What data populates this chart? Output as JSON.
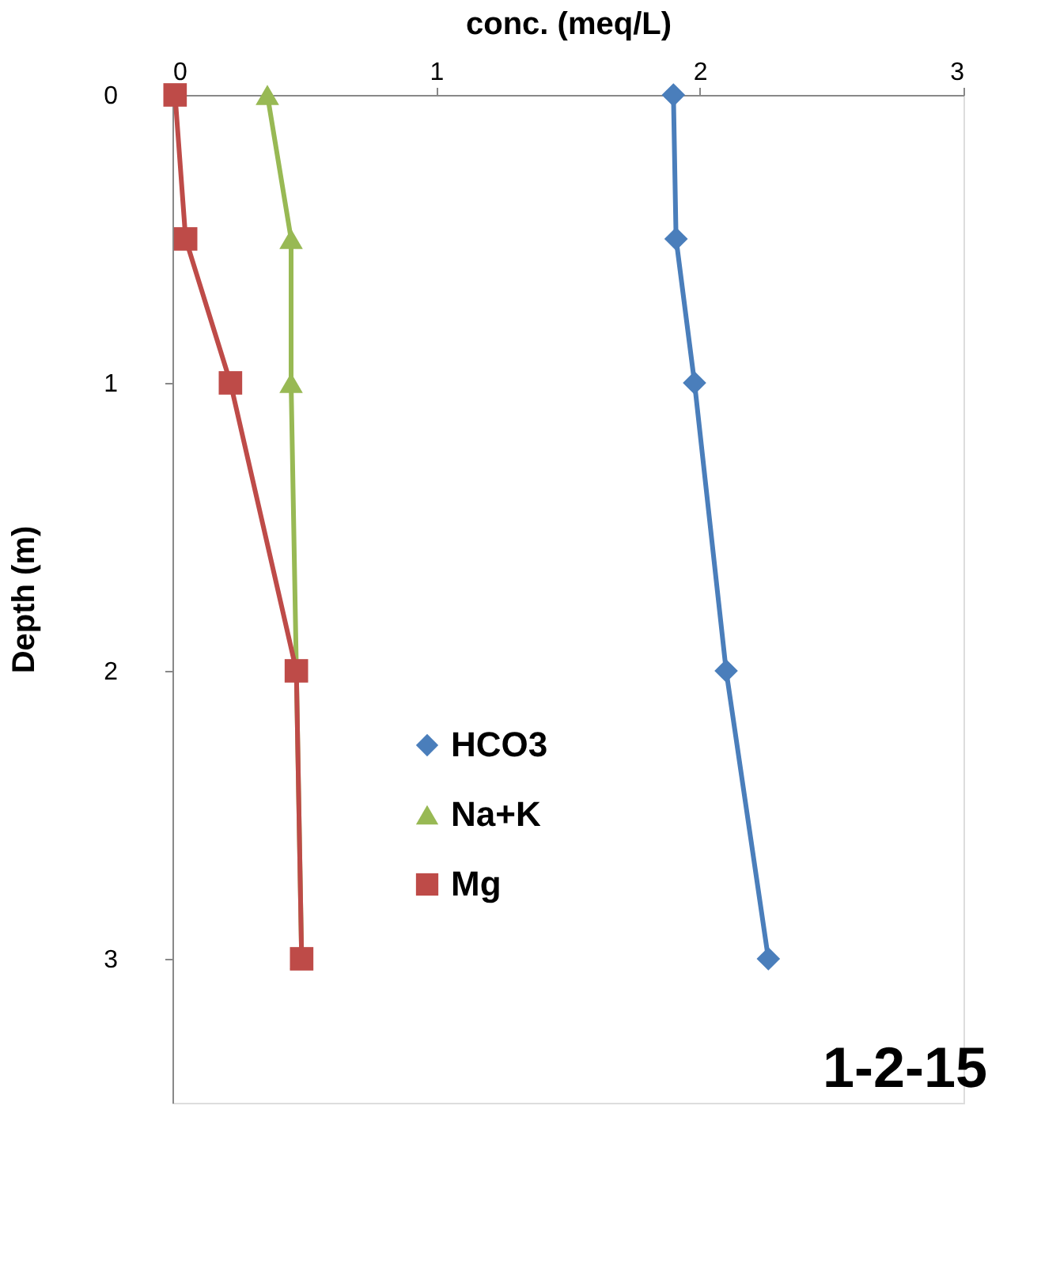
{
  "chart_data": {
    "type": "line",
    "xlabel": "conc. (meq/L)",
    "ylabel": "Depth (m)",
    "xlim": [
      0,
      3
    ],
    "xticks": [
      {
        "value": 0,
        "label": "0"
      },
      {
        "value": 1,
        "label": "1"
      },
      {
        "value": 2,
        "label": "2"
      },
      {
        "value": 3,
        "label": "3"
      }
    ],
    "ylim": [
      3.5,
      0
    ],
    "yticks": [
      {
        "value": 0,
        "label": "0"
      },
      {
        "value": 1,
        "label": "1"
      },
      {
        "value": 2,
        "label": "2"
      },
      {
        "value": 3,
        "label": "3"
      }
    ],
    "grid": false,
    "legend": "bottom",
    "line_style": "solid",
    "annotations": [
      "1-2-15"
    ],
    "series": [
      {
        "name": "HCO3",
        "color": "#4a7ebb",
        "marker": "diamond",
        "x": [
          1.9,
          1.91,
          1.98,
          2.1,
          2.26
        ],
        "values": [
          0,
          0.5,
          1,
          2,
          3
        ]
      },
      {
        "name": "Na+K",
        "color": "#98b954",
        "marker": "triangle",
        "x": [
          0.36,
          0.45,
          0.45,
          0.47,
          0.49
        ],
        "values": [
          0,
          0.5,
          1,
          2,
          3
        ]
      },
      {
        "name": "Mg",
        "color": "#be4b48",
        "marker": "square",
        "x": [
          0.01,
          0.05,
          0.22,
          0.47,
          0.49
        ],
        "values": [
          0,
          0.5,
          1,
          2,
          3
        ]
      }
    ]
  }
}
